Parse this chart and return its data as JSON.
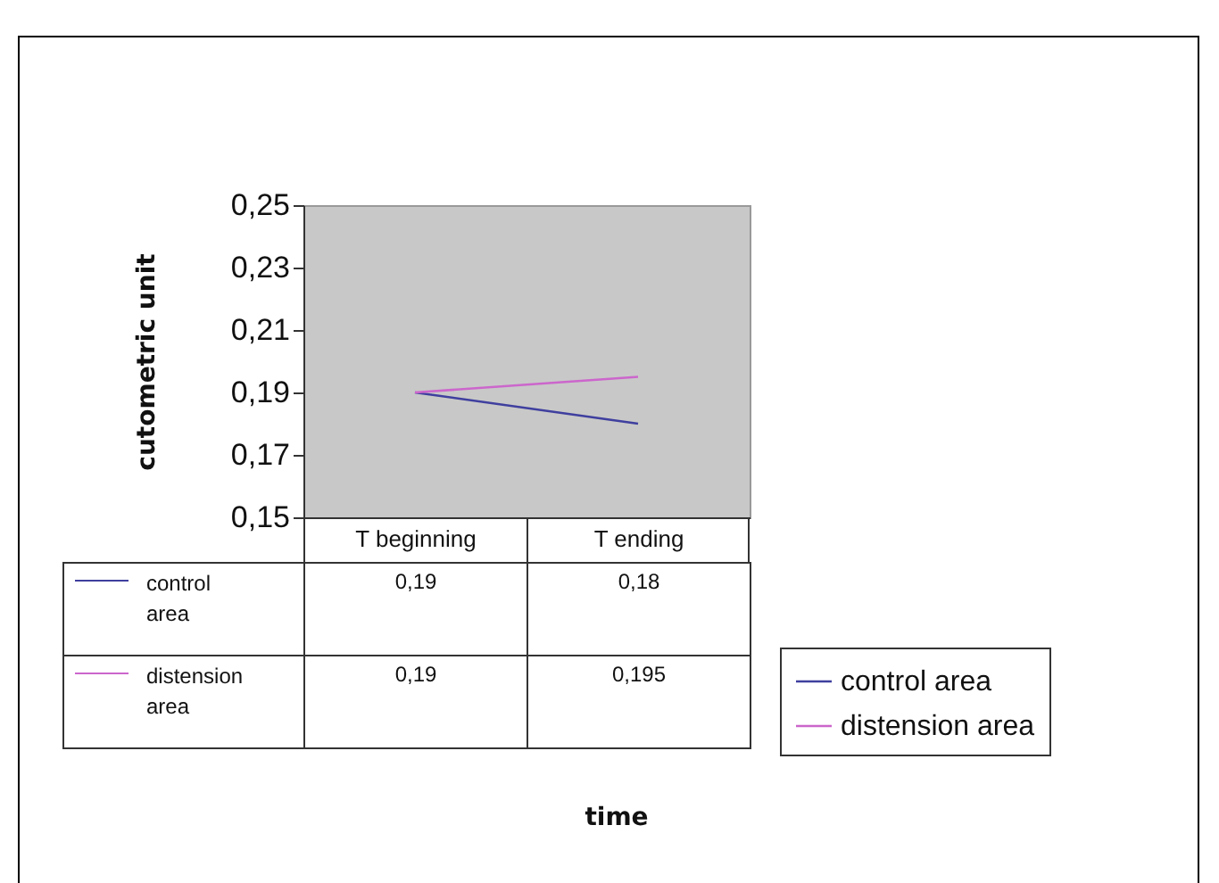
{
  "chart_data": {
    "type": "line",
    "annotations": [
      "time"
    ],
    "ylabel": "cutometric unit",
    "categories": [
      "T beginning",
      "T ending"
    ],
    "series": [
      {
        "name": "control area",
        "color": "#3f3f9f",
        "values": [
          0.19,
          0.18
        ],
        "value_labels": [
          "0,19",
          "0,18"
        ]
      },
      {
        "name": "distension area",
        "color": "#cc66cc",
        "values": [
          0.19,
          0.195
        ],
        "value_labels": [
          "0,19",
          "0,195"
        ]
      }
    ],
    "ylim": [
      0.15,
      0.25
    ],
    "yticks": [
      {
        "value": 0.15,
        "label": "0,15"
      },
      {
        "value": 0.17,
        "label": "0,17"
      },
      {
        "value": 0.19,
        "label": "0,19"
      },
      {
        "value": 0.21,
        "label": "0,21"
      },
      {
        "value": 0.23,
        "label": "0,23"
      },
      {
        "value": 0.25,
        "label": "0,25"
      }
    ],
    "grid": false,
    "legend": "bottom",
    "marker": "none",
    "line_style": "solid"
  }
}
